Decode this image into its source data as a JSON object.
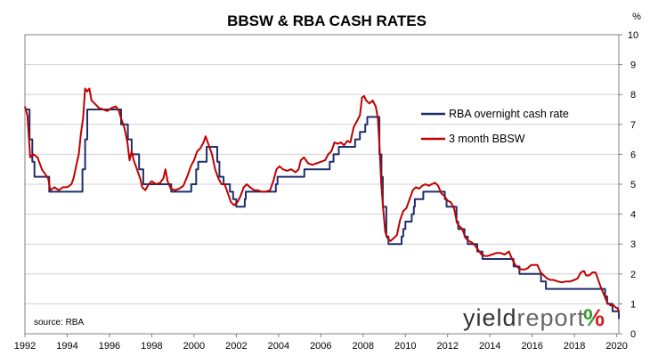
{
  "chart_data": {
    "type": "line",
    "title": "BBSW & RBA CASH RATES",
    "y_unit": "%",
    "source": "source: RBA",
    "xlim": [
      1992.0,
      2020.1
    ],
    "ylim": [
      0,
      10
    ],
    "y_axis_position": "right",
    "grid": "horizontal",
    "legend_position": "right, inside plot",
    "x_ticks": [
      "1992",
      "1994",
      "1996",
      "1998",
      "2000",
      "2002",
      "2004",
      "2006",
      "2008",
      "2010",
      "2012",
      "2014",
      "2016",
      "2018",
      "2020"
    ],
    "y_ticks": [
      "0",
      "1",
      "2",
      "3",
      "4",
      "5",
      "6",
      "7",
      "8",
      "9",
      "10"
    ],
    "colors": {
      "rba": "#1f2f6b",
      "bbsw": "#c00000",
      "axis": "#808080",
      "grid": "#d0d0d0"
    },
    "series": [
      {
        "name": "RBA overnight cash rate",
        "color": "#1f2f6b",
        "step": true,
        "points": [
          [
            1992.0,
            7.5
          ],
          [
            1992.2,
            7.5
          ],
          [
            1992.22,
            6.5
          ],
          [
            1992.35,
            5.75
          ],
          [
            1992.45,
            5.25
          ],
          [
            1993.12,
            5.25
          ],
          [
            1993.15,
            4.75
          ],
          [
            1994.7,
            4.75
          ],
          [
            1994.72,
            5.5
          ],
          [
            1994.85,
            6.5
          ],
          [
            1994.95,
            7.5
          ],
          [
            1995.85,
            7.5
          ],
          [
            1996.5,
            7.5
          ],
          [
            1996.55,
            7.0
          ],
          [
            1996.85,
            7.0
          ],
          [
            1996.87,
            6.5
          ],
          [
            1997.05,
            6.0
          ],
          [
            1997.4,
            5.5
          ],
          [
            1997.6,
            5.0
          ],
          [
            1998.0,
            5.0
          ],
          [
            1998.9,
            5.0
          ],
          [
            1998.92,
            4.75
          ],
          [
            1999.85,
            4.75
          ],
          [
            1999.87,
            5.0
          ],
          [
            2000.1,
            5.5
          ],
          [
            2000.2,
            5.75
          ],
          [
            2000.6,
            6.25
          ],
          [
            2001.1,
            5.75
          ],
          [
            2001.2,
            5.25
          ],
          [
            2001.4,
            5.0
          ],
          [
            2001.7,
            4.75
          ],
          [
            2001.85,
            4.5
          ],
          [
            2002.0,
            4.25
          ],
          [
            2002.4,
            4.5
          ],
          [
            2002.45,
            4.75
          ],
          [
            2003.85,
            4.75
          ],
          [
            2003.87,
            5.0
          ],
          [
            2003.95,
            5.25
          ],
          [
            2005.2,
            5.25
          ],
          [
            2005.22,
            5.5
          ],
          [
            2006.4,
            5.5
          ],
          [
            2006.42,
            5.75
          ],
          [
            2006.6,
            6.0
          ],
          [
            2006.85,
            6.25
          ],
          [
            2007.6,
            6.25
          ],
          [
            2007.62,
            6.5
          ],
          [
            2007.85,
            6.75
          ],
          [
            2008.1,
            7.0
          ],
          [
            2008.2,
            7.25
          ],
          [
            2008.75,
            7.25
          ],
          [
            2008.77,
            6.0
          ],
          [
            2008.87,
            5.25
          ],
          [
            2008.93,
            4.25
          ],
          [
            2009.1,
            3.25
          ],
          [
            2009.2,
            3.0
          ],
          [
            2009.8,
            3.0
          ],
          [
            2009.82,
            3.25
          ],
          [
            2009.9,
            3.5
          ],
          [
            2010.0,
            3.75
          ],
          [
            2010.3,
            4.0
          ],
          [
            2010.4,
            4.25
          ],
          [
            2010.45,
            4.5
          ],
          [
            2010.85,
            4.75
          ],
          [
            2011.85,
            4.75
          ],
          [
            2011.87,
            4.5
          ],
          [
            2011.95,
            4.25
          ],
          [
            2012.4,
            4.25
          ],
          [
            2012.42,
            3.75
          ],
          [
            2012.5,
            3.5
          ],
          [
            2012.8,
            3.25
          ],
          [
            2012.95,
            3.0
          ],
          [
            2013.4,
            2.75
          ],
          [
            2013.65,
            2.5
          ],
          [
            2015.1,
            2.5
          ],
          [
            2015.12,
            2.25
          ],
          [
            2015.4,
            2.0
          ],
          [
            2016.4,
            2.0
          ],
          [
            2016.42,
            1.75
          ],
          [
            2016.65,
            1.5
          ],
          [
            2019.4,
            1.5
          ],
          [
            2019.45,
            1.25
          ],
          [
            2019.55,
            1.0
          ],
          [
            2019.8,
            0.75
          ],
          [
            2020.05,
            0.75
          ],
          [
            2020.1,
            0.5
          ]
        ]
      },
      {
        "name": "3 month BBSW",
        "color": "#c00000",
        "step": false,
        "points": [
          [
            1992.0,
            7.6
          ],
          [
            1992.12,
            7.3
          ],
          [
            1992.25,
            5.9
          ],
          [
            1992.4,
            6.0
          ],
          [
            1992.6,
            5.9
          ],
          [
            1992.8,
            5.5
          ],
          [
            1993.0,
            5.3
          ],
          [
            1993.1,
            5.2
          ],
          [
            1993.2,
            4.8
          ],
          [
            1993.4,
            4.9
          ],
          [
            1993.6,
            4.8
          ],
          [
            1993.8,
            4.9
          ],
          [
            1994.0,
            4.9
          ],
          [
            1994.2,
            5.0
          ],
          [
            1994.3,
            5.2
          ],
          [
            1994.45,
            5.7
          ],
          [
            1994.55,
            6.0
          ],
          [
            1994.65,
            6.7
          ],
          [
            1994.75,
            7.2
          ],
          [
            1994.85,
            8.2
          ],
          [
            1994.95,
            8.1
          ],
          [
            1995.05,
            8.2
          ],
          [
            1995.15,
            7.8
          ],
          [
            1995.3,
            7.7
          ],
          [
            1995.5,
            7.55
          ],
          [
            1995.7,
            7.5
          ],
          [
            1995.9,
            7.45
          ],
          [
            1996.1,
            7.55
          ],
          [
            1996.3,
            7.6
          ],
          [
            1996.45,
            7.45
          ],
          [
            1996.55,
            7.2
          ],
          [
            1996.7,
            6.9
          ],
          [
            1996.85,
            6.4
          ],
          [
            1996.95,
            5.8
          ],
          [
            1997.05,
            6.1
          ],
          [
            1997.15,
            5.8
          ],
          [
            1997.3,
            5.5
          ],
          [
            1997.45,
            5.2
          ],
          [
            1997.55,
            4.9
          ],
          [
            1997.7,
            4.8
          ],
          [
            1997.85,
            5.0
          ],
          [
            1998.0,
            5.1
          ],
          [
            1998.2,
            5.0
          ],
          [
            1998.4,
            5.05
          ],
          [
            1998.55,
            5.2
          ],
          [
            1998.65,
            5.5
          ],
          [
            1998.75,
            5.1
          ],
          [
            1998.9,
            4.85
          ],
          [
            1999.1,
            4.8
          ],
          [
            1999.3,
            4.85
          ],
          [
            1999.5,
            4.95
          ],
          [
            1999.7,
            5.3
          ],
          [
            1999.85,
            5.6
          ],
          [
            2000.0,
            5.8
          ],
          [
            2000.15,
            6.1
          ],
          [
            2000.3,
            6.2
          ],
          [
            2000.45,
            6.4
          ],
          [
            2000.55,
            6.6
          ],
          [
            2000.7,
            6.3
          ],
          [
            2000.85,
            6.0
          ],
          [
            2001.0,
            5.5
          ],
          [
            2001.15,
            5.2
          ],
          [
            2001.3,
            5.0
          ],
          [
            2001.45,
            5.0
          ],
          [
            2001.6,
            4.7
          ],
          [
            2001.75,
            4.4
          ],
          [
            2001.9,
            4.3
          ],
          [
            2002.05,
            4.4
          ],
          [
            2002.2,
            4.6
          ],
          [
            2002.35,
            4.9
          ],
          [
            2002.5,
            5.0
          ],
          [
            2002.65,
            4.9
          ],
          [
            2002.85,
            4.8
          ],
          [
            2003.0,
            4.8
          ],
          [
            2003.2,
            4.75
          ],
          [
            2003.4,
            4.75
          ],
          [
            2003.6,
            4.8
          ],
          [
            2003.75,
            5.1
          ],
          [
            2003.9,
            5.5
          ],
          [
            2004.05,
            5.6
          ],
          [
            2004.2,
            5.5
          ],
          [
            2004.4,
            5.45
          ],
          [
            2004.6,
            5.5
          ],
          [
            2004.8,
            5.4
          ],
          [
            2004.95,
            5.5
          ],
          [
            2005.05,
            5.8
          ],
          [
            2005.2,
            5.9
          ],
          [
            2005.4,
            5.7
          ],
          [
            2005.6,
            5.65
          ],
          [
            2005.8,
            5.7
          ],
          [
            2006.0,
            5.75
          ],
          [
            2006.2,
            5.8
          ],
          [
            2006.35,
            6.0
          ],
          [
            2006.5,
            6.1
          ],
          [
            2006.65,
            6.4
          ],
          [
            2006.8,
            6.35
          ],
          [
            2006.95,
            6.4
          ],
          [
            2007.1,
            6.3
          ],
          [
            2007.25,
            6.45
          ],
          [
            2007.4,
            6.4
          ],
          [
            2007.55,
            6.9
          ],
          [
            2007.7,
            7.1
          ],
          [
            2007.85,
            7.3
          ],
          [
            2007.95,
            7.9
          ],
          [
            2008.05,
            7.95
          ],
          [
            2008.15,
            7.8
          ],
          [
            2008.3,
            7.7
          ],
          [
            2008.45,
            7.8
          ],
          [
            2008.6,
            7.6
          ],
          [
            2008.7,
            7.2
          ],
          [
            2008.78,
            6.2
          ],
          [
            2008.86,
            5.0
          ],
          [
            2008.95,
            4.2
          ],
          [
            2009.05,
            3.4
          ],
          [
            2009.15,
            3.2
          ],
          [
            2009.3,
            3.1
          ],
          [
            2009.45,
            3.2
          ],
          [
            2009.6,
            3.3
          ],
          [
            2009.75,
            3.8
          ],
          [
            2009.9,
            4.1
          ],
          [
            2010.05,
            4.2
          ],
          [
            2010.2,
            4.5
          ],
          [
            2010.35,
            4.8
          ],
          [
            2010.5,
            4.9
          ],
          [
            2010.65,
            4.85
          ],
          [
            2010.8,
            4.95
          ],
          [
            2010.95,
            5.0
          ],
          [
            2011.1,
            4.95
          ],
          [
            2011.25,
            5.0
          ],
          [
            2011.4,
            5.05
          ],
          [
            2011.55,
            4.95
          ],
          [
            2011.7,
            4.7
          ],
          [
            2011.85,
            4.6
          ],
          [
            2012.0,
            4.45
          ],
          [
            2012.15,
            4.4
          ],
          [
            2012.3,
            4.2
          ],
          [
            2012.45,
            3.7
          ],
          [
            2012.55,
            3.6
          ],
          [
            2012.7,
            3.5
          ],
          [
            2012.85,
            3.2
          ],
          [
            2013.0,
            3.1
          ],
          [
            2013.15,
            3.05
          ],
          [
            2013.3,
            2.95
          ],
          [
            2013.45,
            2.8
          ],
          [
            2013.6,
            2.65
          ],
          [
            2013.75,
            2.6
          ],
          [
            2013.9,
            2.6
          ],
          [
            2014.1,
            2.65
          ],
          [
            2014.3,
            2.7
          ],
          [
            2014.5,
            2.7
          ],
          [
            2014.7,
            2.65
          ],
          [
            2014.9,
            2.75
          ],
          [
            2015.05,
            2.5
          ],
          [
            2015.2,
            2.3
          ],
          [
            2015.35,
            2.2
          ],
          [
            2015.5,
            2.15
          ],
          [
            2015.65,
            2.15
          ],
          [
            2015.8,
            2.2
          ],
          [
            2015.95,
            2.3
          ],
          [
            2016.1,
            2.3
          ],
          [
            2016.25,
            2.3
          ],
          [
            2016.4,
            2.05
          ],
          [
            2016.55,
            1.95
          ],
          [
            2016.7,
            1.85
          ],
          [
            2016.85,
            1.8
          ],
          [
            2017.0,
            1.8
          ],
          [
            2017.2,
            1.75
          ],
          [
            2017.4,
            1.72
          ],
          [
            2017.6,
            1.75
          ],
          [
            2017.8,
            1.75
          ],
          [
            2018.0,
            1.8
          ],
          [
            2018.15,
            1.85
          ],
          [
            2018.3,
            2.05
          ],
          [
            2018.45,
            2.1
          ],
          [
            2018.55,
            1.95
          ],
          [
            2018.7,
            1.95
          ],
          [
            2018.85,
            2.05
          ],
          [
            2019.0,
            2.05
          ],
          [
            2019.1,
            1.85
          ],
          [
            2019.25,
            1.55
          ],
          [
            2019.4,
            1.3
          ],
          [
            2019.55,
            1.05
          ],
          [
            2019.7,
            0.95
          ],
          [
            2019.85,
            0.95
          ],
          [
            2019.95,
            0.88
          ],
          [
            2020.05,
            0.85
          ],
          [
            2020.1,
            0.7
          ]
        ]
      }
    ]
  },
  "logo": {
    "word_dark": "yield",
    "word_light": "report",
    "pct": "%",
    "colors": {
      "dark": "#333333",
      "light": "#666666",
      "pct_green": "#3a9a35",
      "pct_red": "#d22020"
    }
  }
}
